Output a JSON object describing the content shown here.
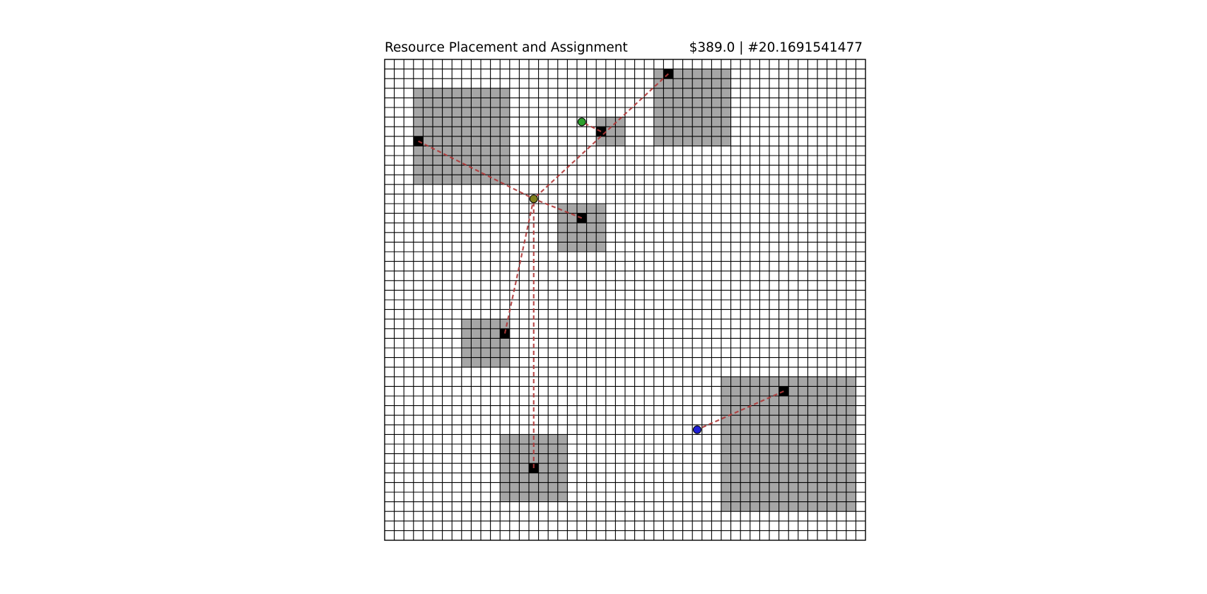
{
  "title": {
    "main": "Resource Placement and Assignment",
    "stats": "$389.0 | #20.1691541477"
  },
  "grid": {
    "cols": 50,
    "rows": 50,
    "line_color": "#000000",
    "background": "#ffffff"
  },
  "colors": {
    "zone_fill": "#a6a6a6",
    "resource_fill": "#000000",
    "link_color": "#b03a3a",
    "facility_green": "#2ca02c",
    "facility_olive": "#7f7f1e",
    "facility_blue": "#1f1fd6"
  },
  "zones": [
    {
      "x0": 3,
      "y0": 3,
      "x1": 13,
      "y1": 13
    },
    {
      "x0": 28,
      "y0": 1,
      "x1": 36,
      "y1": 9
    },
    {
      "x0": 22,
      "y0": 6,
      "x1": 25,
      "y1": 9
    },
    {
      "x0": 18,
      "y0": 15,
      "x1": 23,
      "y1": 20
    },
    {
      "x0": 8,
      "y0": 27,
      "x1": 13,
      "y1": 32
    },
    {
      "x0": 12,
      "y0": 39,
      "x1": 19,
      "y1": 46
    },
    {
      "x0": 35,
      "y0": 33,
      "x1": 49,
      "y1": 47
    }
  ],
  "resources": [
    {
      "id": "R1",
      "x": 3.5,
      "y": 8.5
    },
    {
      "id": "R2",
      "x": 29.5,
      "y": 1.5
    },
    {
      "id": "R3",
      "x": 22.5,
      "y": 7.5
    },
    {
      "id": "R4",
      "x": 20.5,
      "y": 16.5
    },
    {
      "id": "R5",
      "x": 12.5,
      "y": 28.5
    },
    {
      "id": "R6",
      "x": 15.5,
      "y": 42.5
    },
    {
      "id": "R7",
      "x": 41.5,
      "y": 34.5
    }
  ],
  "facilities": [
    {
      "id": "F1",
      "x": 20.5,
      "y": 6.5,
      "color": "green"
    },
    {
      "id": "F2",
      "x": 15.5,
      "y": 14.5,
      "color": "olive"
    },
    {
      "id": "F3",
      "x": 32.5,
      "y": 38.5,
      "color": "blue"
    }
  ],
  "assignments": [
    {
      "from": "R1",
      "to": "F2"
    },
    {
      "from": "R2",
      "to": "F2"
    },
    {
      "from": "R4",
      "to": "F2"
    },
    {
      "from": "R5",
      "to": "F2"
    },
    {
      "from": "R6",
      "to": "F2"
    },
    {
      "from": "R3",
      "to": "F1"
    },
    {
      "from": "R7",
      "to": "F3"
    }
  ]
}
